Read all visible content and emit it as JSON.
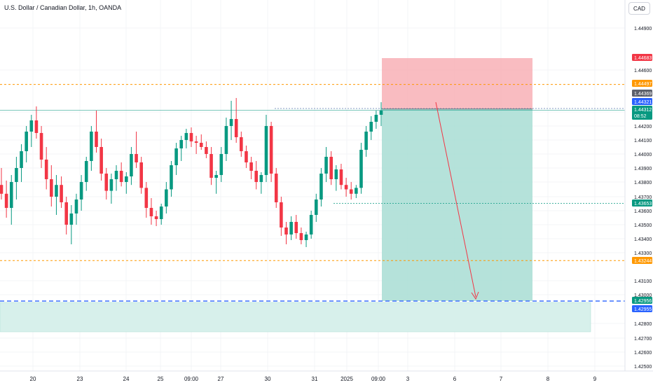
{
  "header": {
    "symbol_title": "U.S. Dollar / Canadian Dollar, 1h, OANDA",
    "currency_button": "CAD"
  },
  "colors": {
    "up": "#089981",
    "down": "#f23645",
    "stop_zone": "#f7a9b0",
    "target_zone": "#a8ddd3",
    "support_zone": "#d7f0eb",
    "orange_level": "#ff9800",
    "blue_level": "#2962ff",
    "arrow": "#f23645",
    "price_label_dark": "#131722"
  },
  "chart_data": {
    "type": "candlestick",
    "symbol": "USDCAD",
    "timeframe": "1h",
    "exchange": "OANDA",
    "y_axis": {
      "ticks": [
        "1.44900",
        "1.44600",
        "1.44300",
        "1.44200",
        "1.44100",
        "1.44000",
        "1.43900",
        "1.43800",
        "1.43700",
        "1.43600",
        "1.43500",
        "1.43400",
        "1.43300",
        "1.43100",
        "1.43000",
        "1.42800",
        "1.42700",
        "1.42600",
        "1.42500"
      ],
      "ylim": [
        1.4245,
        1.4497
      ],
      "scale": "linear"
    },
    "x_axis": {
      "ticks": [
        "20",
        "23",
        "24",
        "25",
        "09:00",
        "27",
        "30",
        "31",
        "2025",
        "09:00",
        "3",
        "6",
        "7",
        "8",
        "9"
      ]
    },
    "price_labels": [
      {
        "value": "1.44683",
        "role": "stop"
      },
      {
        "value": "1.44497",
        "role": "resistance"
      },
      {
        "value": "1.44369",
        "role": "high"
      },
      {
        "value": "1.44321",
        "role": "entry"
      },
      {
        "value": "1.44312",
        "role": "last",
        "countdown": "08:52"
      },
      {
        "value": "1.43653",
        "role": "level"
      },
      {
        "value": "1.43244",
        "role": "support"
      },
      {
        "value": "1.42956",
        "role": "target"
      },
      {
        "value": "1.42955",
        "role": "target-line"
      }
    ],
    "position": {
      "side": "short",
      "entry": 1.44321,
      "stop": 1.44683,
      "target": 1.42956
    },
    "candles": [
      {
        "o": 1.4378,
        "h": 1.439,
        "l": 1.4368,
        "c": 1.4372
      },
      {
        "o": 1.4372,
        "h": 1.4381,
        "l": 1.4355,
        "c": 1.4362
      },
      {
        "o": 1.4362,
        "h": 1.4385,
        "l": 1.435,
        "c": 1.438
      },
      {
        "o": 1.438,
        "h": 1.4398,
        "l": 1.4368,
        "c": 1.439
      },
      {
        "o": 1.439,
        "h": 1.4407,
        "l": 1.438,
        "c": 1.4402
      },
      {
        "o": 1.4402,
        "h": 1.442,
        "l": 1.4394,
        "c": 1.4416
      },
      {
        "o": 1.4416,
        "h": 1.4428,
        "l": 1.4405,
        "c": 1.4424
      },
      {
        "o": 1.4424,
        "h": 1.4434,
        "l": 1.4411,
        "c": 1.4415
      },
      {
        "o": 1.4415,
        "h": 1.442,
        "l": 1.439,
        "c": 1.4396
      },
      {
        "o": 1.4396,
        "h": 1.4405,
        "l": 1.4375,
        "c": 1.4382
      },
      {
        "o": 1.4382,
        "h": 1.4392,
        "l": 1.4363,
        "c": 1.437
      },
      {
        "o": 1.437,
        "h": 1.4385,
        "l": 1.4357,
        "c": 1.4378
      },
      {
        "o": 1.4378,
        "h": 1.4384,
        "l": 1.4362,
        "c": 1.4366
      },
      {
        "o": 1.4366,
        "h": 1.437,
        "l": 1.4343,
        "c": 1.435
      },
      {
        "o": 1.435,
        "h": 1.4364,
        "l": 1.4336,
        "c": 1.4358
      },
      {
        "o": 1.4358,
        "h": 1.4372,
        "l": 1.435,
        "c": 1.4368
      },
      {
        "o": 1.4368,
        "h": 1.4385,
        "l": 1.436,
        "c": 1.438
      },
      {
        "o": 1.438,
        "h": 1.4398,
        "l": 1.4374,
        "c": 1.4395
      },
      {
        "o": 1.4395,
        "h": 1.442,
        "l": 1.4388,
        "c": 1.4416
      },
      {
        "o": 1.4416,
        "h": 1.4431,
        "l": 1.4401,
        "c": 1.4405
      },
      {
        "o": 1.4405,
        "h": 1.4411,
        "l": 1.4381,
        "c": 1.4386
      },
      {
        "o": 1.4386,
        "h": 1.439,
        "l": 1.4368,
        "c": 1.4374
      },
      {
        "o": 1.4374,
        "h": 1.4386,
        "l": 1.4365,
        "c": 1.4382
      },
      {
        "o": 1.4382,
        "h": 1.4392,
        "l": 1.4374,
        "c": 1.4388
      },
      {
        "o": 1.4388,
        "h": 1.4394,
        "l": 1.4377,
        "c": 1.438
      },
      {
        "o": 1.438,
        "h": 1.4387,
        "l": 1.4372,
        "c": 1.4384
      },
      {
        "o": 1.4384,
        "h": 1.4405,
        "l": 1.4378,
        "c": 1.44
      },
      {
        "o": 1.44,
        "h": 1.4416,
        "l": 1.439,
        "c": 1.4394
      },
      {
        "o": 1.4394,
        "h": 1.4398,
        "l": 1.4372,
        "c": 1.4376
      },
      {
        "o": 1.4376,
        "h": 1.438,
        "l": 1.4355,
        "c": 1.4362
      },
      {
        "o": 1.4362,
        "h": 1.4369,
        "l": 1.435,
        "c": 1.4356
      },
      {
        "o": 1.4356,
        "h": 1.436,
        "l": 1.4349,
        "c": 1.4354
      },
      {
        "o": 1.4354,
        "h": 1.4365,
        "l": 1.435,
        "c": 1.4363
      },
      {
        "o": 1.4363,
        "h": 1.438,
        "l": 1.4358,
        "c": 1.4375
      },
      {
        "o": 1.4375,
        "h": 1.4395,
        "l": 1.437,
        "c": 1.4392
      },
      {
        "o": 1.4392,
        "h": 1.4408,
        "l": 1.4385,
        "c": 1.4404
      },
      {
        "o": 1.4404,
        "h": 1.4413,
        "l": 1.4395,
        "c": 1.441
      },
      {
        "o": 1.441,
        "h": 1.4418,
        "l": 1.4404,
        "c": 1.4415
      },
      {
        "o": 1.4415,
        "h": 1.4419,
        "l": 1.4405,
        "c": 1.4409
      },
      {
        "o": 1.4409,
        "h": 1.4413,
        "l": 1.44,
        "c": 1.4408
      },
      {
        "o": 1.4408,
        "h": 1.4414,
        "l": 1.4403,
        "c": 1.4405
      },
      {
        "o": 1.4405,
        "h": 1.4409,
        "l": 1.4397,
        "c": 1.44
      },
      {
        "o": 1.44,
        "h": 1.4405,
        "l": 1.4378,
        "c": 1.4383
      },
      {
        "o": 1.4383,
        "h": 1.4388,
        "l": 1.4372,
        "c": 1.4385
      },
      {
        "o": 1.4385,
        "h": 1.4405,
        "l": 1.438,
        "c": 1.44
      },
      {
        "o": 1.44,
        "h": 1.4426,
        "l": 1.4395,
        "c": 1.442
      },
      {
        "o": 1.442,
        "h": 1.4438,
        "l": 1.441,
        "c": 1.4425
      },
      {
        "o": 1.4425,
        "h": 1.444,
        "l": 1.4408,
        "c": 1.4412
      },
      {
        "o": 1.4412,
        "h": 1.4416,
        "l": 1.4398,
        "c": 1.4402
      },
      {
        "o": 1.4402,
        "h": 1.4406,
        "l": 1.439,
        "c": 1.4394
      },
      {
        "o": 1.4394,
        "h": 1.4398,
        "l": 1.4382,
        "c": 1.4388
      },
      {
        "o": 1.4388,
        "h": 1.4395,
        "l": 1.4375,
        "c": 1.438
      },
      {
        "o": 1.438,
        "h": 1.4387,
        "l": 1.4372,
        "c": 1.4385
      },
      {
        "o": 1.4385,
        "h": 1.4428,
        "l": 1.438,
        "c": 1.442
      },
      {
        "o": 1.442,
        "h": 1.4423,
        "l": 1.438,
        "c": 1.4386
      },
      {
        "o": 1.4386,
        "h": 1.439,
        "l": 1.4362,
        "c": 1.4366
      },
      {
        "o": 1.4366,
        "h": 1.437,
        "l": 1.4342,
        "c": 1.4348
      },
      {
        "o": 1.4348,
        "h": 1.4352,
        "l": 1.4336,
        "c": 1.4343
      },
      {
        "o": 1.4343,
        "h": 1.4356,
        "l": 1.4339,
        "c": 1.4352
      },
      {
        "o": 1.4352,
        "h": 1.4357,
        "l": 1.434,
        "c": 1.4344
      },
      {
        "o": 1.4344,
        "h": 1.4348,
        "l": 1.4336,
        "c": 1.4339
      },
      {
        "o": 1.4339,
        "h": 1.4345,
        "l": 1.4334,
        "c": 1.4343
      },
      {
        "o": 1.4343,
        "h": 1.436,
        "l": 1.434,
        "c": 1.4357
      },
      {
        "o": 1.4357,
        "h": 1.4372,
        "l": 1.4352,
        "c": 1.4368
      },
      {
        "o": 1.4368,
        "h": 1.439,
        "l": 1.4363,
        "c": 1.4386
      },
      {
        "o": 1.4386,
        "h": 1.4405,
        "l": 1.438,
        "c": 1.4398
      },
      {
        "o": 1.4398,
        "h": 1.4402,
        "l": 1.4378,
        "c": 1.4382
      },
      {
        "o": 1.4382,
        "h": 1.4392,
        "l": 1.4374,
        "c": 1.4389
      },
      {
        "o": 1.4389,
        "h": 1.4393,
        "l": 1.4375,
        "c": 1.4378
      },
      {
        "o": 1.4378,
        "h": 1.4383,
        "l": 1.437,
        "c": 1.4375
      },
      {
        "o": 1.4375,
        "h": 1.438,
        "l": 1.4368,
        "c": 1.4372
      },
      {
        "o": 1.4372,
        "h": 1.4378,
        "l": 1.4369,
        "c": 1.4376
      },
      {
        "o": 1.4376,
        "h": 1.4408,
        "l": 1.4372,
        "c": 1.4403
      },
      {
        "o": 1.4403,
        "h": 1.442,
        "l": 1.4398,
        "c": 1.4416
      },
      {
        "o": 1.4416,
        "h": 1.4427,
        "l": 1.441,
        "c": 1.4423
      },
      {
        "o": 1.4423,
        "h": 1.4431,
        "l": 1.4418,
        "c": 1.4428
      },
      {
        "o": 1.4428,
        "h": 1.4437,
        "l": 1.442,
        "c": 1.4431
      }
    ]
  }
}
